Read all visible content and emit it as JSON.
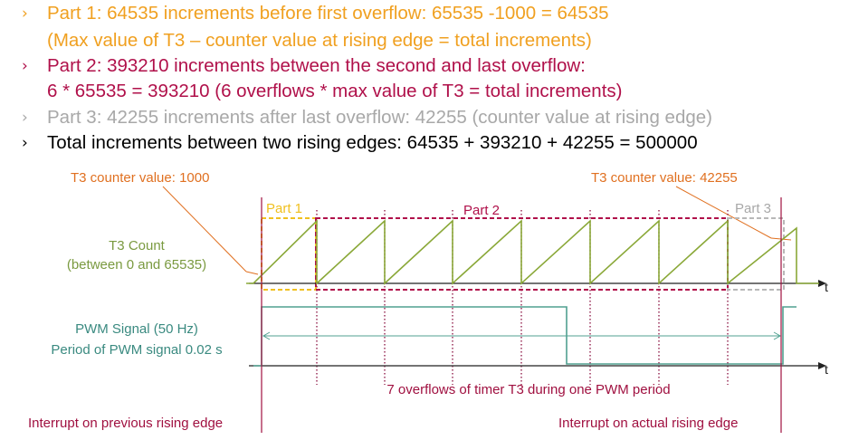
{
  "bullets": [
    {
      "marker": "›",
      "color": "#f0a020",
      "lines": [
        "Part 1: 64535 increments before first overflow: 65535 -1000 = 64535",
        "(Max value of T3 – counter value at rising edge = total increments)"
      ]
    },
    {
      "marker": "›",
      "color": "#b0104a",
      "lines": [
        "Part 2: 393210 increments between the second and last overflow:",
        "6 * 65535 = 393210 (6 overflows * max value of T3 = total increments)"
      ]
    },
    {
      "marker": "›",
      "color": "#a8a8a8",
      "lines": [
        "Part 3: 42255 increments after last overflow: 42255 (counter value at rising edge)"
      ]
    },
    {
      "marker": "›",
      "color": "#000000",
      "lines": [
        "Total increments between two rising edges: 64535 + 393210 + 42255 = 500000"
      ]
    }
  ],
  "diagram": {
    "counter_label_left": "T3 counter value: 1000",
    "counter_label_right": "T3 counter value: 42255",
    "part1_label": "Part 1",
    "part2_label": "Part 2",
    "part3_label": "Part 3",
    "t3_label_line1": "T3 Count",
    "t3_label_line2": "(between 0 and 65535)",
    "pwm_label_line1": "PWM Signal (50 Hz)",
    "pwm_label_line2": "Period of PWM signal 0.02 s",
    "axis_t_top": "t",
    "axis_t_bottom": "t",
    "overflows_text": "7 overflows of timer T3 during one PWM period",
    "interrupt_prev": "Interrupt on previous rising edge",
    "interrupt_actual": "Interrupt on actual rising edge",
    "colors": {
      "orange_text": "#e07020",
      "part1": "#f0c020",
      "part2": "#b0104a",
      "part3": "#b8b8b8",
      "saw": "#8aa838",
      "pwm": "#50a090",
      "label_green": "#7a9a40",
      "label_teal": "#3a8a80",
      "interrupt": "#a01040",
      "overflow_text": "#a01040"
    }
  }
}
